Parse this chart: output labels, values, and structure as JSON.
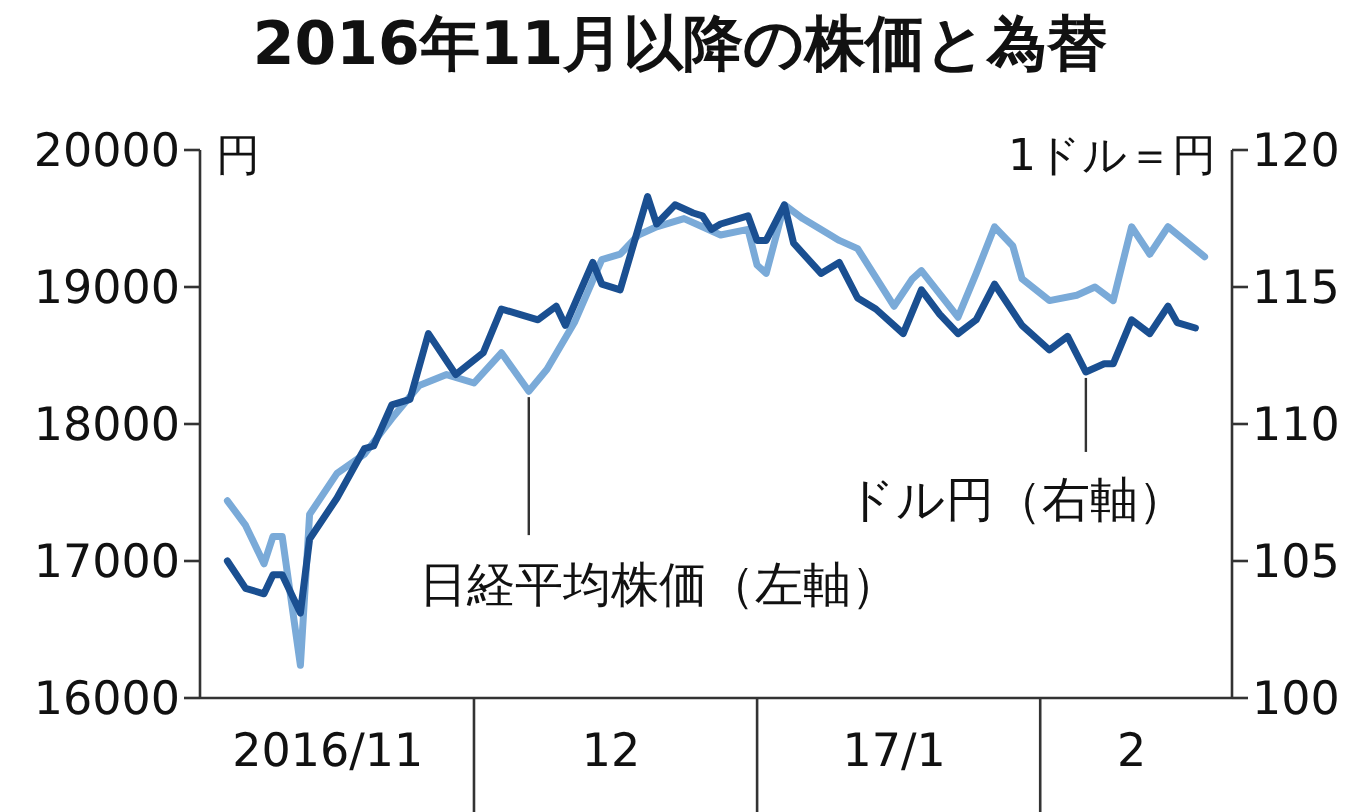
{
  "chart_data": {
    "type": "line",
    "title": "2016年11月以降の株価と為替",
    "ylabel": "円",
    "y2label": "1ドル＝円",
    "xlim": [
      "2016-11-01",
      "2017-02-22"
    ],
    "xticks": [
      {
        "value": "2016-11-15",
        "label": "2016/11"
      },
      {
        "value": "2016-12-01",
        "label": null
      },
      {
        "value": "2016-12-16",
        "label": "12"
      },
      {
        "value": "2017-01-01",
        "label": null
      },
      {
        "value": "2017-01-16",
        "label": "17/1"
      },
      {
        "value": "2017-02-01",
        "label": null
      },
      {
        "value": "2017-02-11",
        "label": "2"
      }
    ],
    "ylim": [
      16000,
      20000
    ],
    "yticks": [
      16000,
      17000,
      18000,
      19000,
      20000
    ],
    "y2lim": [
      100,
      120
    ],
    "y2ticks": [
      100,
      105,
      110,
      115,
      120
    ],
    "series": [
      {
        "name": "日経平均株価（左軸）",
        "color": "#7aaad8",
        "x": [
          "2016-11-04",
          "2016-11-06",
          "2016-11-08",
          "2016-11-09",
          "2016-11-10",
          "2016-11-12",
          "2016-11-13",
          "2016-11-16",
          "2016-11-19",
          "2016-11-22",
          "2016-11-25",
          "2016-11-28",
          "2016-12-01",
          "2016-12-04",
          "2016-12-07",
          "2016-12-09",
          "2016-12-12",
          "2016-12-15",
          "2016-12-17",
          "2016-12-19",
          "2016-12-21",
          "2016-12-24",
          "2016-12-26",
          "2016-12-28",
          "2016-12-31",
          "2017-01-01",
          "2017-01-02",
          "2017-01-04",
          "2017-01-06",
          "2017-01-09",
          "2017-01-10",
          "2017-01-12",
          "2017-01-16",
          "2017-01-18",
          "2017-01-19",
          "2017-01-23",
          "2017-01-25",
          "2017-01-27",
          "2017-01-29",
          "2017-01-30",
          "2017-02-02",
          "2017-02-05",
          "2017-02-07",
          "2017-02-09",
          "2017-02-11",
          "2017-02-13",
          "2017-02-15",
          "2017-02-19"
        ],
        "values": [
          17440,
          17260,
          16980,
          17180,
          17180,
          16240,
          17340,
          17640,
          17780,
          18040,
          18280,
          18360,
          18300,
          18520,
          18240,
          18400,
          18740,
          19200,
          19240,
          19380,
          19440,
          19500,
          19440,
          19380,
          19420,
          19160,
          19100,
          19600,
          19500,
          19380,
          19340,
          19280,
          18860,
          19060,
          19120,
          18780,
          19100,
          19440,
          19300,
          19060,
          18900,
          18940,
          19000,
          18900,
          19440,
          19240,
          19440,
          19220
        ]
      },
      {
        "name": "ドル円（右軸）",
        "color": "#1a4f91",
        "axis": "y2",
        "x": [
          "2016-11-04",
          "2016-11-06",
          "2016-11-08",
          "2016-11-09",
          "2016-11-10",
          "2016-11-12",
          "2016-11-13",
          "2016-11-16",
          "2016-11-19",
          "2016-11-20",
          "2016-11-22",
          "2016-11-24",
          "2016-11-26",
          "2016-11-29",
          "2016-12-02",
          "2016-12-04",
          "2016-12-06",
          "2016-12-08",
          "2016-12-10",
          "2016-12-11",
          "2016-12-14",
          "2016-12-15",
          "2016-12-17",
          "2016-12-20",
          "2016-12-21",
          "2016-12-23",
          "2016-12-25",
          "2016-12-26",
          "2016-12-27",
          "2016-12-28",
          "2016-12-31",
          "2017-01-01",
          "2017-01-02",
          "2017-01-04",
          "2017-01-05",
          "2017-01-08",
          "2017-01-10",
          "2017-01-12",
          "2017-01-14",
          "2017-01-17",
          "2017-01-19",
          "2017-01-21",
          "2017-01-23",
          "2017-01-25",
          "2017-01-27",
          "2017-01-30",
          "2017-02-02",
          "2017-02-04",
          "2017-02-06",
          "2017-02-08",
          "2017-02-09",
          "2017-02-11",
          "2017-02-13",
          "2017-02-15",
          "2017-02-16",
          "2017-02-18"
        ],
        "values": [
          105.0,
          104.0,
          103.8,
          104.5,
          104.5,
          103.1,
          105.8,
          107.3,
          109.1,
          109.2,
          110.7,
          110.9,
          113.3,
          111.8,
          112.6,
          114.2,
          114.0,
          113.8,
          114.3,
          113.6,
          115.9,
          115.1,
          114.9,
          118.3,
          117.3,
          118.0,
          117.7,
          117.6,
          117.1,
          117.3,
          117.6,
          116.7,
          116.7,
          118.0,
          116.6,
          115.5,
          115.9,
          114.6,
          114.2,
          113.3,
          114.9,
          114.0,
          113.3,
          113.8,
          115.1,
          113.6,
          112.7,
          113.2,
          111.9,
          112.2,
          112.2,
          113.8,
          113.3,
          114.3,
          113.7,
          113.5
        ]
      }
    ]
  }
}
